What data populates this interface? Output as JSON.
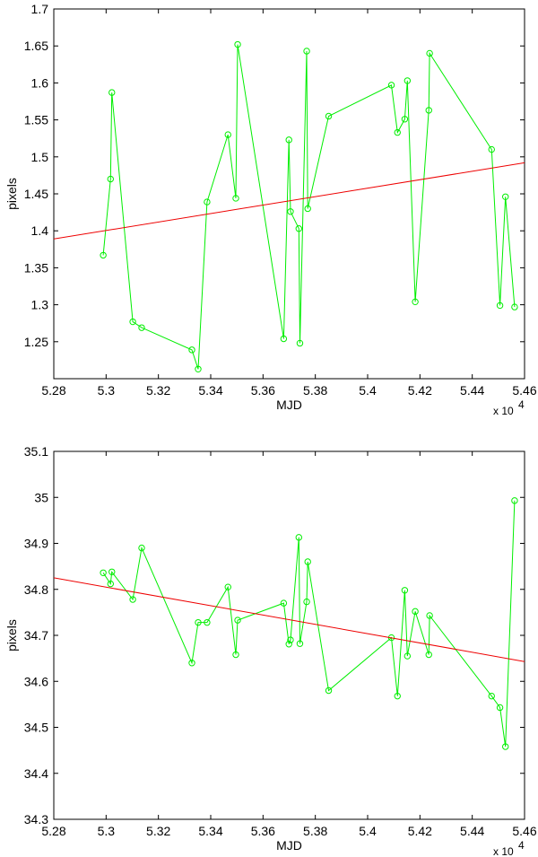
{
  "chart_data": [
    {
      "type": "line",
      "title": "",
      "xlabel": "MJD",
      "ylabel": "pixels",
      "x_exponent_label": "x 10",
      "x_exponent_power": "4",
      "xlim": [
        5.28,
        5.46
      ],
      "ylim": [
        1.2,
        1.7
      ],
      "xticks": [
        "5.28",
        "5.3",
        "5.32",
        "5.34",
        "5.36",
        "5.38",
        "5.4",
        "5.42",
        "5.44",
        "5.46"
      ],
      "yticks": [
        "1.25",
        "1.3",
        "1.35",
        "1.4",
        "1.45",
        "1.5",
        "1.55",
        "1.6",
        "1.65",
        "1.7"
      ],
      "grid": false,
      "series": [
        {
          "color": "#00ee00",
          "marker": "circle",
          "points": [
            [
              5.2989,
              1.367
            ],
            [
              5.3017,
              1.47
            ],
            [
              5.3022,
              1.587
            ],
            [
              5.3102,
              1.277
            ],
            [
              5.3136,
              1.269
            ],
            [
              5.3328,
              1.239
            ],
            [
              5.3352,
              1.213
            ],
            [
              5.3386,
              1.439
            ],
            [
              5.3466,
              1.53
            ],
            [
              5.3496,
              1.444
            ],
            [
              5.3503,
              1.652
            ],
            [
              5.3679,
              1.254
            ],
            [
              5.3699,
              1.523
            ],
            [
              5.3705,
              1.426
            ],
            [
              5.3737,
              1.403
            ],
            [
              5.3741,
              1.248
            ],
            [
              5.3767,
              1.643
            ],
            [
              5.3771,
              1.43
            ],
            [
              5.3851,
              1.555
            ],
            [
              5.4091,
              1.597
            ],
            [
              5.4114,
              1.533
            ],
            [
              5.4142,
              1.551
            ],
            [
              5.4152,
              1.603
            ],
            [
              5.4182,
              1.304
            ],
            [
              5.4234,
              1.563
            ],
            [
              5.4237,
              1.64
            ],
            [
              5.4474,
              1.51
            ],
            [
              5.4506,
              1.299
            ],
            [
              5.4527,
              1.446
            ],
            [
              5.4562,
              1.297
            ]
          ]
        },
        {
          "color": "#ee0000",
          "marker": "none",
          "points": [
            [
              5.28,
              1.389
            ],
            [
              5.46,
              1.492
            ]
          ]
        }
      ]
    },
    {
      "type": "line",
      "title": "",
      "xlabel": "MJD",
      "ylabel": "pixels",
      "x_exponent_label": "x 10",
      "x_exponent_power": "4",
      "xlim": [
        5.28,
        5.46
      ],
      "ylim": [
        34.3,
        35.1
      ],
      "xticks": [
        "5.28",
        "5.3",
        "5.32",
        "5.34",
        "5.36",
        "5.38",
        "5.4",
        "5.42",
        "5.44",
        "5.46"
      ],
      "yticks": [
        "34.3",
        "34.4",
        "34.5",
        "34.6",
        "34.7",
        "34.8",
        "34.9",
        "35",
        "35.1"
      ],
      "grid": false,
      "series": [
        {
          "color": "#00ee00",
          "marker": "circle",
          "points": [
            [
              5.2989,
              34.836
            ],
            [
              5.3017,
              34.812
            ],
            [
              5.3022,
              34.838
            ],
            [
              5.3102,
              34.778
            ],
            [
              5.3136,
              34.89
            ],
            [
              5.3328,
              34.64
            ],
            [
              5.3352,
              34.728
            ],
            [
              5.3386,
              34.728
            ],
            [
              5.3466,
              34.805
            ],
            [
              5.3496,
              34.658
            ],
            [
              5.3503,
              34.733
            ],
            [
              5.3679,
              34.77
            ],
            [
              5.3699,
              34.681
            ],
            [
              5.3705,
              34.69
            ],
            [
              5.3737,
              34.913
            ],
            [
              5.3741,
              34.682
            ],
            [
              5.3767,
              34.773
            ],
            [
              5.3771,
              34.86
            ],
            [
              5.3851,
              34.58
            ],
            [
              5.4091,
              34.695
            ],
            [
              5.4114,
              34.568
            ],
            [
              5.4142,
              34.798
            ],
            [
              5.4152,
              34.655
            ],
            [
              5.4182,
              34.752
            ],
            [
              5.4234,
              34.658
            ],
            [
              5.4237,
              34.743
            ],
            [
              5.4474,
              34.568
            ],
            [
              5.4506,
              34.543
            ],
            [
              5.4527,
              34.458
            ],
            [
              5.4562,
              34.993
            ]
          ]
        },
        {
          "color": "#ee0000",
          "marker": "none",
          "points": [
            [
              5.28,
              34.825
            ],
            [
              5.46,
              34.643
            ]
          ]
        }
      ]
    }
  ]
}
